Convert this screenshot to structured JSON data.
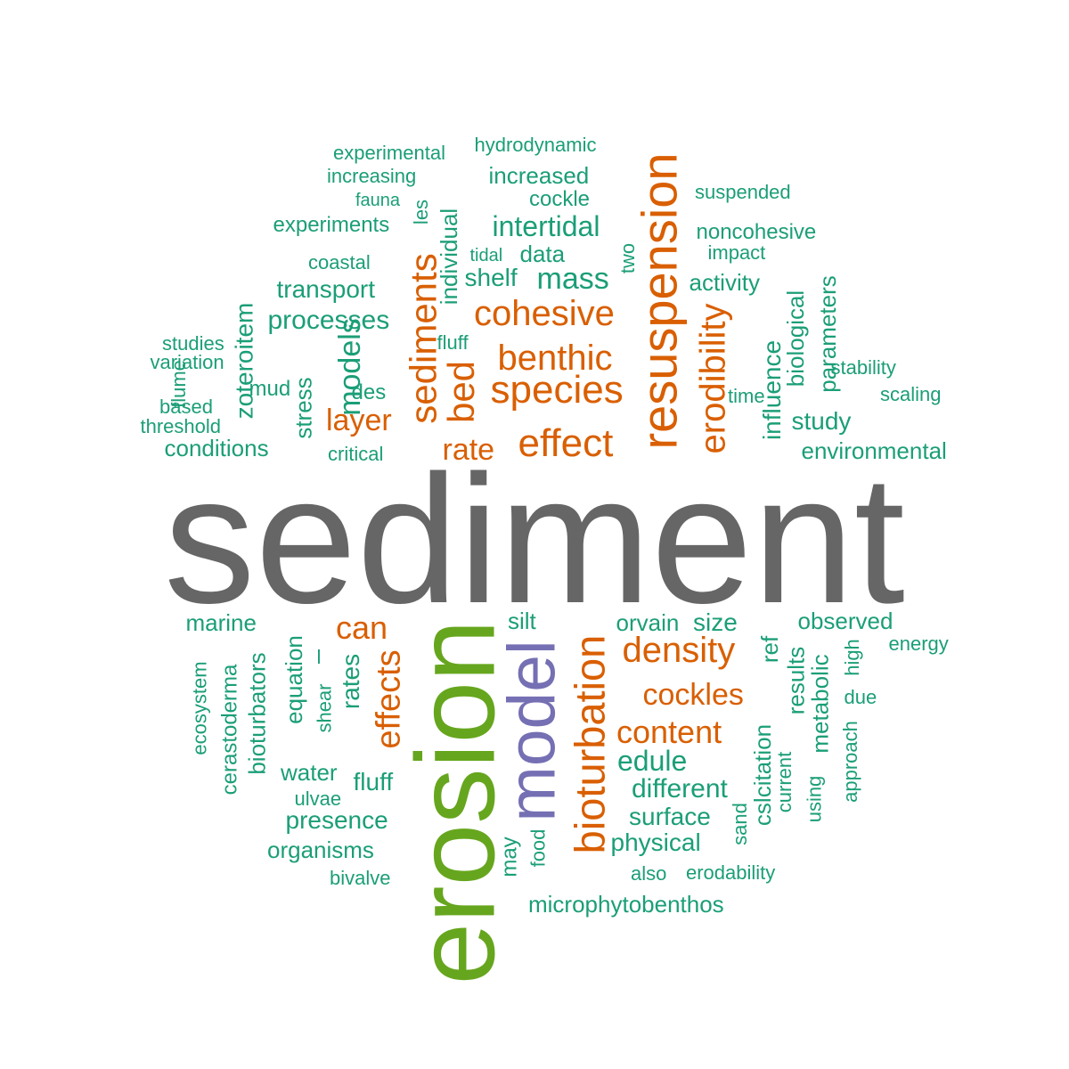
{
  "palette": {
    "gray": "#666666",
    "green": "#66a61e",
    "purple": "#7570b3",
    "orange": "#d95f02",
    "teal": "#1b9e77"
  },
  "words": [
    {
      "text": "sediment",
      "color": "gray",
      "vertical": false
    },
    {
      "text": "erosion",
      "color": "green",
      "vertical": true
    },
    {
      "text": "model",
      "color": "purple",
      "vertical": true
    },
    {
      "text": "resuspension",
      "color": "orange",
      "vertical": true
    },
    {
      "text": "bioturbation",
      "color": "orange",
      "vertical": true
    },
    {
      "text": "sediments",
      "color": "orange",
      "vertical": true
    },
    {
      "text": "bed",
      "color": "orange",
      "vertical": true
    },
    {
      "text": "erodibility",
      "color": "orange",
      "vertical": true
    },
    {
      "text": "effects",
      "color": "orange",
      "vertical": true
    },
    {
      "text": "effect",
      "color": "orange",
      "vertical": false
    },
    {
      "text": "species",
      "color": "orange",
      "vertical": false
    },
    {
      "text": "cohesive",
      "color": "orange",
      "vertical": false
    },
    {
      "text": "benthic",
      "color": "orange",
      "vertical": false
    },
    {
      "text": "density",
      "color": "orange",
      "vertical": false
    },
    {
      "text": "content",
      "color": "orange",
      "vertical": false
    },
    {
      "text": "cockles",
      "color": "orange",
      "vertical": false
    },
    {
      "text": "layer",
      "color": "orange",
      "vertical": false
    },
    {
      "text": "rate",
      "color": "orange",
      "vertical": false
    },
    {
      "text": "can",
      "color": "orange",
      "vertical": false
    },
    {
      "text": "experimental",
      "color": "teal",
      "vertical": false
    },
    {
      "text": "hydrodynamic",
      "color": "teal",
      "vertical": false
    },
    {
      "text": "increasing",
      "color": "teal",
      "vertical": false
    },
    {
      "text": "increased",
      "color": "teal",
      "vertical": false
    },
    {
      "text": "fauna",
      "color": "teal",
      "vertical": false
    },
    {
      "text": "cockle",
      "color": "teal",
      "vertical": false
    },
    {
      "text": "suspended",
      "color": "teal",
      "vertical": false
    },
    {
      "text": "experiments",
      "color": "teal",
      "vertical": false
    },
    {
      "text": "les",
      "color": "teal",
      "vertical": true
    },
    {
      "text": "individual",
      "color": "teal",
      "vertical": true
    },
    {
      "text": "intertidal",
      "color": "teal",
      "vertical": false
    },
    {
      "text": "noncohesive",
      "color": "teal",
      "vertical": false
    },
    {
      "text": "tidal",
      "color": "teal",
      "vertical": false
    },
    {
      "text": "data",
      "color": "teal",
      "vertical": false
    },
    {
      "text": "two",
      "color": "teal",
      "vertical": true
    },
    {
      "text": "impact",
      "color": "teal",
      "vertical": false
    },
    {
      "text": "coastal",
      "color": "teal",
      "vertical": false
    },
    {
      "text": "shelf",
      "color": "teal",
      "vertical": false
    },
    {
      "text": "mass",
      "color": "teal",
      "vertical": false
    },
    {
      "text": "activity",
      "color": "teal",
      "vertical": false
    },
    {
      "text": "transport",
      "color": "teal",
      "vertical": false
    },
    {
      "text": "zoteroitem",
      "color": "teal",
      "vertical": true
    },
    {
      "text": "processes",
      "color": "teal",
      "vertical": false
    },
    {
      "text": "fluff",
      "color": "teal",
      "vertical": false
    },
    {
      "text": "biological",
      "color": "teal",
      "vertical": true
    },
    {
      "text": "parameters",
      "color": "teal",
      "vertical": true
    },
    {
      "text": "influence",
      "color": "teal",
      "vertical": true
    },
    {
      "text": "studies",
      "color": "teal",
      "vertical": false
    },
    {
      "text": "variation",
      "color": "teal",
      "vertical": false
    },
    {
      "text": "flume",
      "color": "teal",
      "vertical": true
    },
    {
      "text": "mud",
      "color": "teal",
      "vertical": false
    },
    {
      "text": "models",
      "color": "teal",
      "vertical": true
    },
    {
      "text": "time",
      "color": "teal",
      "vertical": false
    },
    {
      "text": "stability",
      "color": "teal",
      "vertical": false
    },
    {
      "text": "stress",
      "color": "teal",
      "vertical": true
    },
    {
      "text": "des",
      "color": "teal",
      "vertical": false
    },
    {
      "text": "scaling",
      "color": "teal",
      "vertical": false
    },
    {
      "text": "based",
      "color": "teal",
      "vertical": false
    },
    {
      "text": "threshold",
      "color": "teal",
      "vertical": false
    },
    {
      "text": "study",
      "color": "teal",
      "vertical": false
    },
    {
      "text": "conditions",
      "color": "teal",
      "vertical": false
    },
    {
      "text": "critical",
      "color": "teal",
      "vertical": false
    },
    {
      "text": "environmental",
      "color": "teal",
      "vertical": false
    },
    {
      "text": "marine",
      "color": "teal",
      "vertical": false
    },
    {
      "text": "silt",
      "color": "teal",
      "vertical": false
    },
    {
      "text": "orvain",
      "color": "teal",
      "vertical": false
    },
    {
      "text": "size",
      "color": "teal",
      "vertical": false
    },
    {
      "text": "observed",
      "color": "teal",
      "vertical": false
    },
    {
      "text": "ecosystem",
      "color": "teal",
      "vertical": true
    },
    {
      "text": "cerastoderma",
      "color": "teal",
      "vertical": true
    },
    {
      "text": "bioturbators",
      "color": "teal",
      "vertical": true
    },
    {
      "text": "equation",
      "color": "teal",
      "vertical": true
    },
    {
      "text": "l",
      "color": "teal",
      "vertical": false
    },
    {
      "text": "shear",
      "color": "teal",
      "vertical": true
    },
    {
      "text": "rates",
      "color": "teal",
      "vertical": true
    },
    {
      "text": "ref",
      "color": "teal",
      "vertical": true
    },
    {
      "text": "results",
      "color": "teal",
      "vertical": true
    },
    {
      "text": "metabolic",
      "color": "teal",
      "vertical": true
    },
    {
      "text": "high",
      "color": "teal",
      "vertical": true
    },
    {
      "text": "energy",
      "color": "teal",
      "vertical": false
    },
    {
      "text": "due",
      "color": "teal",
      "vertical": false
    },
    {
      "text": "approach",
      "color": "teal",
      "vertical": true
    },
    {
      "text": "cslcitation",
      "color": "teal",
      "vertical": true
    },
    {
      "text": "current",
      "color": "teal",
      "vertical": true
    },
    {
      "text": "using",
      "color": "teal",
      "vertical": true
    },
    {
      "text": "edule",
      "color": "teal",
      "vertical": false
    },
    {
      "text": "water",
      "color": "teal",
      "vertical": false
    },
    {
      "text": "fluff",
      "color": "teal",
      "vertical": false
    },
    {
      "text": "different",
      "color": "teal",
      "vertical": false
    },
    {
      "text": "ulvae",
      "color": "teal",
      "vertical": false
    },
    {
      "text": "surface",
      "color": "teal",
      "vertical": false
    },
    {
      "text": "presence",
      "color": "teal",
      "vertical": false
    },
    {
      "text": "sand",
      "color": "teal",
      "vertical": true
    },
    {
      "text": "physical",
      "color": "teal",
      "vertical": false
    },
    {
      "text": "food",
      "color": "teal",
      "vertical": true
    },
    {
      "text": "organisms",
      "color": "teal",
      "vertical": false
    },
    {
      "text": "may",
      "color": "teal",
      "vertical": true
    },
    {
      "text": "also",
      "color": "teal",
      "vertical": false
    },
    {
      "text": "erodability",
      "color": "teal",
      "vertical": false
    },
    {
      "text": "bivalve",
      "color": "teal",
      "vertical": false
    },
    {
      "text": "microphytobenthos",
      "color": "teal",
      "vertical": false
    }
  ]
}
